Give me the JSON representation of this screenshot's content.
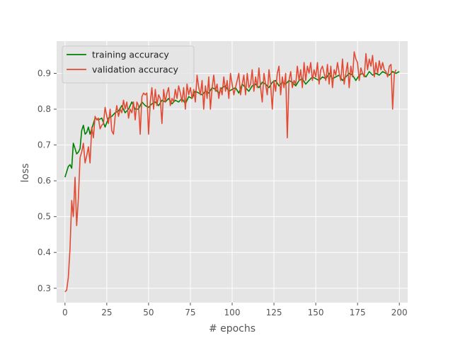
{
  "chart_data": {
    "type": "line",
    "title": "",
    "xlabel": "# epochs",
    "ylabel": "loss",
    "xlim": [
      -5,
      205
    ],
    "ylim": [
      0.26,
      0.99
    ],
    "x_ticks": [
      0,
      25,
      50,
      75,
      100,
      125,
      150,
      175,
      200
    ],
    "y_ticks": [
      0.3,
      0.4,
      0.5,
      0.6,
      0.7,
      0.8,
      0.9
    ],
    "grid": true,
    "legend_position": "top-left",
    "series": [
      {
        "name": "training accuracy",
        "color": "#008000",
        "points": [
          [
            0,
            0.61
          ],
          [
            2,
            0.64
          ],
          [
            3,
            0.645
          ],
          [
            4,
            0.635
          ],
          [
            5,
            0.705
          ],
          [
            6,
            0.69
          ],
          [
            7,
            0.675
          ],
          [
            8,
            0.68
          ],
          [
            9,
            0.69
          ],
          [
            10,
            0.74
          ],
          [
            11,
            0.755
          ],
          [
            12,
            0.73
          ],
          [
            13,
            0.735
          ],
          [
            14,
            0.75
          ],
          [
            15,
            0.73
          ],
          [
            16,
            0.745
          ],
          [
            17,
            0.76
          ],
          [
            18,
            0.775
          ],
          [
            20,
            0.77
          ],
          [
            22,
            0.775
          ],
          [
            24,
            0.75
          ],
          [
            26,
            0.775
          ],
          [
            28,
            0.78
          ],
          [
            30,
            0.79
          ],
          [
            32,
            0.795
          ],
          [
            34,
            0.81
          ],
          [
            36,
            0.79
          ],
          [
            38,
            0.8
          ],
          [
            40,
            0.82
          ],
          [
            42,
            0.8
          ],
          [
            44,
            0.8
          ],
          [
            46,
            0.82
          ],
          [
            48,
            0.81
          ],
          [
            50,
            0.805
          ],
          [
            52,
            0.815
          ],
          [
            54,
            0.82
          ],
          [
            56,
            0.81
          ],
          [
            58,
            0.825
          ],
          [
            60,
            0.82
          ],
          [
            62,
            0.83
          ],
          [
            64,
            0.815
          ],
          [
            66,
            0.825
          ],
          [
            68,
            0.82
          ],
          [
            70,
            0.83
          ],
          [
            72,
            0.815
          ],
          [
            74,
            0.835
          ],
          [
            76,
            0.83
          ],
          [
            78,
            0.85
          ],
          [
            80,
            0.845
          ],
          [
            82,
            0.84
          ],
          [
            84,
            0.85
          ],
          [
            86,
            0.845
          ],
          [
            88,
            0.86
          ],
          [
            90,
            0.855
          ],
          [
            92,
            0.845
          ],
          [
            94,
            0.86
          ],
          [
            96,
            0.865
          ],
          [
            98,
            0.85
          ],
          [
            100,
            0.855
          ],
          [
            102,
            0.86
          ],
          [
            104,
            0.845
          ],
          [
            106,
            0.87
          ],
          [
            108,
            0.86
          ],
          [
            110,
            0.85
          ],
          [
            112,
            0.865
          ],
          [
            114,
            0.87
          ],
          [
            116,
            0.86
          ],
          [
            118,
            0.875
          ],
          [
            120,
            0.87
          ],
          [
            122,
            0.86
          ],
          [
            124,
            0.875
          ],
          [
            126,
            0.88
          ],
          [
            128,
            0.865
          ],
          [
            130,
            0.875
          ],
          [
            132,
            0.87
          ],
          [
            134,
            0.88
          ],
          [
            136,
            0.875
          ],
          [
            138,
            0.865
          ],
          [
            140,
            0.88
          ],
          [
            142,
            0.885
          ],
          [
            144,
            0.87
          ],
          [
            146,
            0.88
          ],
          [
            148,
            0.89
          ],
          [
            150,
            0.885
          ],
          [
            152,
            0.88
          ],
          [
            154,
            0.89
          ],
          [
            156,
            0.885
          ],
          [
            158,
            0.9
          ],
          [
            160,
            0.885
          ],
          [
            162,
            0.89
          ],
          [
            164,
            0.895
          ],
          [
            166,
            0.88
          ],
          [
            168,
            0.89
          ],
          [
            170,
            0.9
          ],
          [
            172,
            0.895
          ],
          [
            174,
            0.88
          ],
          [
            176,
            0.895
          ],
          [
            178,
            0.9
          ],
          [
            180,
            0.89
          ],
          [
            182,
            0.905
          ],
          [
            184,
            0.895
          ],
          [
            186,
            0.9
          ],
          [
            188,
            0.895
          ],
          [
            190,
            0.905
          ],
          [
            192,
            0.9
          ],
          [
            194,
            0.895
          ],
          [
            196,
            0.905
          ],
          [
            198,
            0.9
          ],
          [
            200,
            0.905
          ]
        ]
      },
      {
        "name": "validation accuracy",
        "color": "#e24a33",
        "points": [
          [
            0,
            0.29
          ],
          [
            1,
            0.295
          ],
          [
            2,
            0.33
          ],
          [
            3,
            0.41
          ],
          [
            4,
            0.545
          ],
          [
            5,
            0.5
          ],
          [
            6,
            0.61
          ],
          [
            7,
            0.475
          ],
          [
            8,
            0.55
          ],
          [
            9,
            0.665
          ],
          [
            10,
            0.68
          ],
          [
            11,
            0.705
          ],
          [
            12,
            0.65
          ],
          [
            13,
            0.67
          ],
          [
            14,
            0.695
          ],
          [
            15,
            0.65
          ],
          [
            16,
            0.75
          ],
          [
            17,
            0.72
          ],
          [
            18,
            0.78
          ],
          [
            19,
            0.77
          ],
          [
            20,
            0.775
          ],
          [
            21,
            0.745
          ],
          [
            22,
            0.755
          ],
          [
            23,
            0.76
          ],
          [
            24,
            0.805
          ],
          [
            25,
            0.78
          ],
          [
            26,
            0.76
          ],
          [
            27,
            0.8
          ],
          [
            28,
            0.74
          ],
          [
            29,
            0.73
          ],
          [
            30,
            0.78
          ],
          [
            31,
            0.81
          ],
          [
            32,
            0.78
          ],
          [
            33,
            0.8
          ],
          [
            34,
            0.79
          ],
          [
            35,
            0.825
          ],
          [
            36,
            0.8
          ],
          [
            37,
            0.82
          ],
          [
            38,
            0.775
          ],
          [
            39,
            0.8
          ],
          [
            40,
            0.79
          ],
          [
            41,
            0.82
          ],
          [
            42,
            0.77
          ],
          [
            43,
            0.82
          ],
          [
            44,
            0.81
          ],
          [
            45,
            0.73
          ],
          [
            46,
            0.835
          ],
          [
            47,
            0.845
          ],
          [
            48,
            0.84
          ],
          [
            49,
            0.845
          ],
          [
            50,
            0.73
          ],
          [
            51,
            0.82
          ],
          [
            52,
            0.86
          ],
          [
            53,
            0.8
          ],
          [
            54,
            0.855
          ],
          [
            55,
            0.81
          ],
          [
            56,
            0.84
          ],
          [
            57,
            0.83
          ],
          [
            58,
            0.76
          ],
          [
            59,
            0.855
          ],
          [
            60,
            0.82
          ],
          [
            61,
            0.845
          ],
          [
            62,
            0.86
          ],
          [
            63,
            0.81
          ],
          [
            64,
            0.83
          ],
          [
            65,
            0.82
          ],
          [
            66,
            0.855
          ],
          [
            67,
            0.83
          ],
          [
            68,
            0.865
          ],
          [
            69,
            0.845
          ],
          [
            70,
            0.82
          ],
          [
            71,
            0.86
          ],
          [
            72,
            0.8
          ],
          [
            73,
            0.87
          ],
          [
            74,
            0.84
          ],
          [
            75,
            0.86
          ],
          [
            76,
            0.83
          ],
          [
            77,
            0.855
          ],
          [
            78,
            0.82
          ],
          [
            79,
            0.895
          ],
          [
            80,
            0.86
          ],
          [
            81,
            0.84
          ],
          [
            82,
            0.88
          ],
          [
            83,
            0.8
          ],
          [
            84,
            0.865
          ],
          [
            85,
            0.83
          ],
          [
            86,
            0.89
          ],
          [
            87,
            0.8
          ],
          [
            88,
            0.86
          ],
          [
            89,
            0.895
          ],
          [
            90,
            0.85
          ],
          [
            91,
            0.87
          ],
          [
            92,
            0.83
          ],
          [
            93,
            0.86
          ],
          [
            94,
            0.84
          ],
          [
            95,
            0.89
          ],
          [
            96,
            0.85
          ],
          [
            97,
            0.88
          ],
          [
            98,
            0.83
          ],
          [
            99,
            0.9
          ],
          [
            100,
            0.87
          ],
          [
            101,
            0.84
          ],
          [
            102,
            0.86
          ],
          [
            103,
            0.88
          ],
          [
            104,
            0.9
          ],
          [
            105,
            0.84
          ],
          [
            106,
            0.87
          ],
          [
            107,
            0.895
          ],
          [
            108,
            0.84
          ],
          [
            109,
            0.9
          ],
          [
            110,
            0.86
          ],
          [
            111,
            0.87
          ],
          [
            112,
            0.91
          ],
          [
            113,
            0.85
          ],
          [
            114,
            0.89
          ],
          [
            115,
            0.86
          ],
          [
            116,
            0.915
          ],
          [
            117,
            0.86
          ],
          [
            118,
            0.82
          ],
          [
            119,
            0.9
          ],
          [
            120,
            0.87
          ],
          [
            121,
            0.84
          ],
          [
            122,
            0.91
          ],
          [
            123,
            0.87
          ],
          [
            124,
            0.8
          ],
          [
            125,
            0.88
          ],
          [
            126,
            0.85
          ],
          [
            127,
            0.9
          ],
          [
            128,
            0.92
          ],
          [
            129,
            0.84
          ],
          [
            130,
            0.89
          ],
          [
            131,
            0.86
          ],
          [
            132,
            0.9
          ],
          [
            133,
            0.72
          ],
          [
            134,
            0.88
          ],
          [
            135,
            0.905
          ],
          [
            136,
            0.86
          ],
          [
            137,
            0.88
          ],
          [
            138,
            0.87
          ],
          [
            139,
            0.92
          ],
          [
            140,
            0.88
          ],
          [
            141,
            0.91
          ],
          [
            142,
            0.86
          ],
          [
            143,
            0.93
          ],
          [
            144,
            0.88
          ],
          [
            145,
            0.92
          ],
          [
            146,
            0.9
          ],
          [
            147,
            0.93
          ],
          [
            148,
            0.88
          ],
          [
            149,
            0.91
          ],
          [
            150,
            0.89
          ],
          [
            151,
            0.93
          ],
          [
            152,
            0.87
          ],
          [
            153,
            0.91
          ],
          [
            154,
            0.92
          ],
          [
            155,
            0.9
          ],
          [
            156,
            0.88
          ],
          [
            157,
            0.925
          ],
          [
            158,
            0.87
          ],
          [
            159,
            0.92
          ],
          [
            160,
            0.86
          ],
          [
            161,
            0.91
          ],
          [
            162,
            0.895
          ],
          [
            163,
            0.93
          ],
          [
            164,
            0.9
          ],
          [
            165,
            0.88
          ],
          [
            166,
            0.94
          ],
          [
            167,
            0.87
          ],
          [
            168,
            0.9
          ],
          [
            169,
            0.93
          ],
          [
            170,
            0.86
          ],
          [
            171,
            0.92
          ],
          [
            172,
            0.89
          ],
          [
            173,
            0.96
          ],
          [
            174,
            0.94
          ],
          [
            175,
            0.93
          ],
          [
            176,
            0.88
          ],
          [
            177,
            0.915
          ],
          [
            178,
            0.9
          ],
          [
            179,
            0.89
          ],
          [
            180,
            0.955
          ],
          [
            181,
            0.91
          ],
          [
            182,
            0.94
          ],
          [
            183,
            0.92
          ],
          [
            184,
            0.95
          ],
          [
            185,
            0.89
          ],
          [
            186,
            0.93
          ],
          [
            187,
            0.9
          ],
          [
            188,
            0.935
          ],
          [
            189,
            0.91
          ],
          [
            190,
            0.93
          ],
          [
            191,
            0.91
          ],
          [
            192,
            0.905
          ],
          [
            193,
            0.89
          ],
          [
            194,
            0.92
          ],
          [
            195,
            0.925
          ],
          [
            196,
            0.8
          ],
          [
            197,
            0.9
          ],
          [
            198,
            0.91
          ]
        ]
      }
    ]
  }
}
